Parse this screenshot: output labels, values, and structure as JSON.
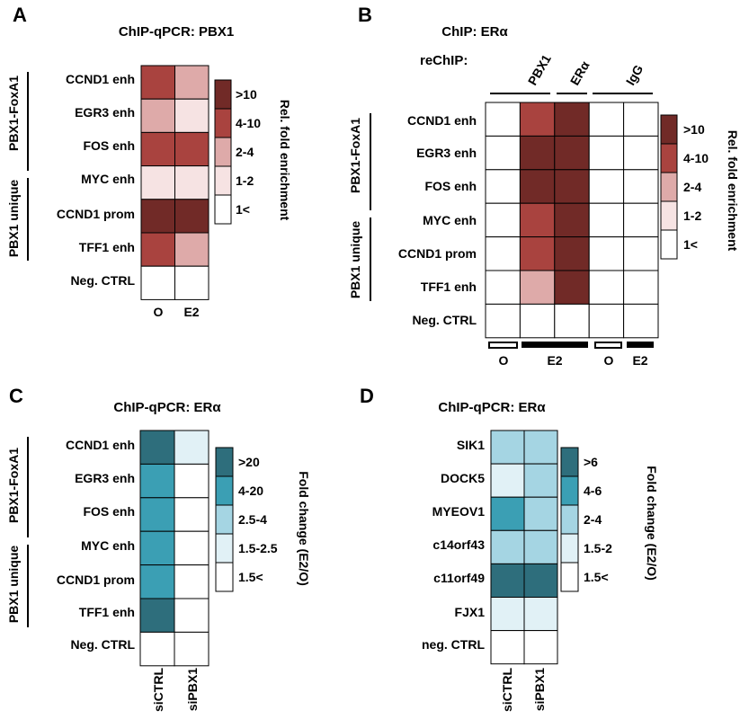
{
  "panels": {
    "A": {
      "letter": "A",
      "title": "ChIP-qPCR: PBX1",
      "rows": [
        "CCND1 enh",
        "EGR3 enh",
        "FOS enh",
        "MYC enh",
        "CCND1 prom",
        "TFF1 enh",
        "Neg. CTRL"
      ],
      "columns": [
        "O",
        "E2"
      ],
      "group_labels": [
        "PBX1-FoxA1",
        "PBX1 unique"
      ],
      "legend_title": "Rel. fold enrichment",
      "legend": [
        {
          "label": ">10",
          "color": "#712a27"
        },
        {
          "label": "4-10",
          "color": "#a9433f"
        },
        {
          "label": "2-4",
          "color": "#deaaa9"
        },
        {
          "label": "1-2",
          "color": "#f6e3e3"
        },
        {
          "label": "1<",
          "color": "#ffffff"
        }
      ]
    },
    "B": {
      "letter": "B",
      "title": "ChIP: ERα",
      "rechip_label": "reChIP:",
      "col_groups": [
        "PBX1",
        "ERα",
        "IgG"
      ],
      "rows": [
        "CCND1 enh",
        "EGR3 enh",
        "FOS enh",
        "MYC enh",
        "CCND1 prom",
        "TFF1 enh",
        "Neg. CTRL"
      ],
      "bottom_labels": [
        "O",
        "E2",
        "O",
        "E2"
      ],
      "group_labels": [
        "PBX1-FoxA1",
        "PBX1 unique"
      ],
      "legend_title": "Rel. fold enrichment",
      "legend": [
        {
          "label": ">10",
          "color": "#712a27"
        },
        {
          "label": "4-10",
          "color": "#a9433f"
        },
        {
          "label": "2-4",
          "color": "#deaaa9"
        },
        {
          "label": "1-2",
          "color": "#f6e3e3"
        },
        {
          "label": "1<",
          "color": "#ffffff"
        }
      ]
    },
    "C": {
      "letter": "C",
      "title": "ChIP-qPCR: ERα",
      "rows": [
        "CCND1 enh",
        "EGR3 enh",
        "FOS enh",
        "MYC enh",
        "CCND1 prom",
        "TFF1 enh",
        "Neg. CTRL"
      ],
      "columns": [
        "siCTRL",
        "siPBX1"
      ],
      "group_labels": [
        "PBX1-FoxA1",
        "PBX1 unique"
      ],
      "legend_title": "Fold change (E2/O)",
      "legend": [
        {
          "label": ">20",
          "color": "#2e6e7c"
        },
        {
          "label": "4-20",
          "color": "#3b9fb4"
        },
        {
          "label": "2.5-4",
          "color": "#a5d5e3"
        },
        {
          "label": "1.5-2.5",
          "color": "#e1f1f6"
        },
        {
          "label": "1.5<",
          "color": "#ffffff"
        }
      ]
    },
    "D": {
      "letter": "D",
      "title": "ChIP-qPCR: ERα",
      "rows": [
        "SIK1",
        "DOCK5",
        "MYEOV1",
        "c14orf43",
        "c11orf49",
        "FJX1",
        "neg. CTRL"
      ],
      "columns": [
        "siCTRL",
        "siPBX1"
      ],
      "legend_title": "Fold change (E2/O)",
      "legend": [
        {
          "label": ">6",
          "color": "#2e6e7c"
        },
        {
          "label": "4-6",
          "color": "#3b9fb4"
        },
        {
          "label": "2-4",
          "color": "#a5d5e3"
        },
        {
          "label": "1.5-2",
          "color": "#e1f1f6"
        },
        {
          "label": "1.5<",
          "color": "#ffffff"
        }
      ]
    }
  },
  "chart_data": [
    {
      "type": "heatmap",
      "title": "ChIP-qPCR: PBX1",
      "x": [
        "O",
        "E2"
      ],
      "y": [
        "CCND1 enh",
        "EGR3 enh",
        "FOS enh",
        "MYC enh",
        "CCND1 prom",
        "TFF1 enh",
        "Neg. CTRL"
      ],
      "values": [
        [
          "4-10",
          "2-4"
        ],
        [
          "2-4",
          "1-2"
        ],
        [
          "4-10",
          "4-10"
        ],
        [
          "1-2",
          "1-2"
        ],
        [
          ">10",
          ">10"
        ],
        [
          "4-10",
          "2-4"
        ],
        [
          "1<",
          "1<"
        ]
      ],
      "legend_title": "Rel. fold enrichment"
    },
    {
      "type": "heatmap",
      "title": "ChIP: ERα",
      "x": [
        "PBX1 O",
        "PBX1 E2",
        "ERα E2",
        "IgG O",
        "IgG E2"
      ],
      "y": [
        "CCND1 enh",
        "EGR3 enh",
        "FOS enh",
        "MYC enh",
        "CCND1 prom",
        "TFF1 enh",
        "Neg. CTRL"
      ],
      "values": [
        [
          "1<",
          "4-10",
          ">10",
          "1<",
          "1<"
        ],
        [
          "1<",
          ">10",
          ">10",
          "1<",
          "1<"
        ],
        [
          "1<",
          ">10",
          ">10",
          "1<",
          "1<"
        ],
        [
          "1<",
          "4-10",
          ">10",
          "1<",
          "1<"
        ],
        [
          "1<",
          "4-10",
          ">10",
          "1<",
          "1<"
        ],
        [
          "1<",
          "2-4",
          ">10",
          "1<",
          "1<"
        ],
        [
          "1<",
          "1<",
          "1<",
          "1<",
          "1<"
        ]
      ],
      "legend_title": "Rel. fold enrichment"
    },
    {
      "type": "heatmap",
      "title": "ChIP-qPCR: ERα",
      "x": [
        "siCTRL",
        "siPBX1"
      ],
      "y": [
        "CCND1 enh",
        "EGR3 enh",
        "FOS enh",
        "MYC enh",
        "CCND1 prom",
        "TFF1 enh",
        "Neg. CTRL"
      ],
      "values": [
        [
          ">20",
          "1.5-2.5"
        ],
        [
          "4-20",
          "1.5<"
        ],
        [
          "4-20",
          "1.5<"
        ],
        [
          "4-20",
          "1.5<"
        ],
        [
          "4-20",
          "1.5<"
        ],
        [
          ">20",
          "1.5<"
        ],
        [
          "1.5<",
          "1.5<"
        ]
      ],
      "legend_title": "Fold change (E2/O)"
    },
    {
      "type": "heatmap",
      "title": "ChIP-qPCR: ERα",
      "x": [
        "siCTRL",
        "siPBX1"
      ],
      "y": [
        "SIK1",
        "DOCK5",
        "MYEOV1",
        "c14orf43",
        "c11orf49",
        "FJX1",
        "neg. CTRL"
      ],
      "values": [
        [
          "2-4",
          "2-4"
        ],
        [
          "1.5-2",
          "2-4"
        ],
        [
          "4-6",
          "2-4"
        ],
        [
          "2-4",
          "2-4"
        ],
        [
          ">6",
          ">6"
        ],
        [
          "1.5-2",
          "1.5-2"
        ],
        [
          "1.5<",
          "1.5<"
        ]
      ],
      "legend_title": "Fold change (E2/O)"
    }
  ]
}
